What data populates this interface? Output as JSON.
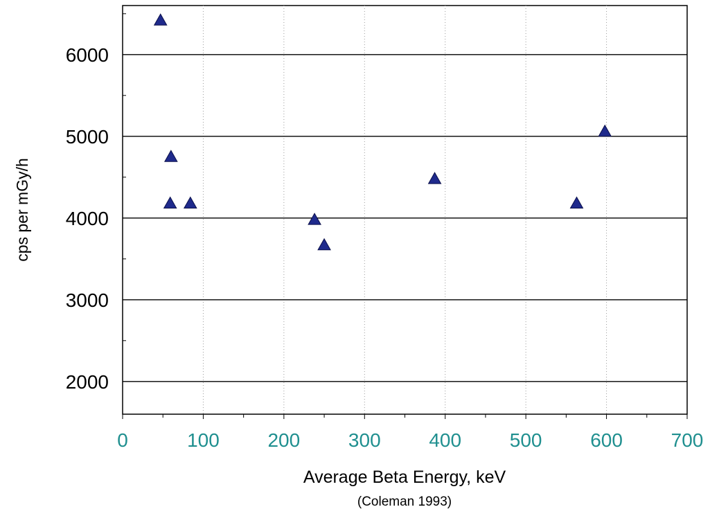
{
  "chart_data": {
    "type": "scatter",
    "title": "",
    "xlabel": "Average Beta Energy, keV",
    "ylabel": "cps per mGy/h",
    "note": "(Coleman 1993)",
    "xlim": [
      0,
      700
    ],
    "ylim": [
      1600,
      6600
    ],
    "x_ticks": [
      "0",
      "100",
      "200",
      "300",
      "400",
      "500",
      "600",
      "700"
    ],
    "y_ticks": [
      "2000",
      "3000",
      "4000",
      "5000",
      "6000"
    ],
    "grid": {
      "horizontal": "solid",
      "vertical": "dotted"
    },
    "marker": "triangle",
    "points": [
      {
        "x": 47,
        "y": 6420
      },
      {
        "x": 60,
        "y": 4750
      },
      {
        "x": 59,
        "y": 4180
      },
      {
        "x": 84,
        "y": 4180
      },
      {
        "x": 238,
        "y": 3980
      },
      {
        "x": 250,
        "y": 3670
      },
      {
        "x": 387,
        "y": 4480
      },
      {
        "x": 563,
        "y": 4180
      },
      {
        "x": 598,
        "y": 5060
      }
    ]
  },
  "colors": {
    "marker_fill": "#1f2a8c",
    "marker_stroke": "#0a0f4a",
    "x_tick_text": "#1f8f8f",
    "grid_major": "#000000",
    "grid_minor": "#9a9a9a"
  }
}
